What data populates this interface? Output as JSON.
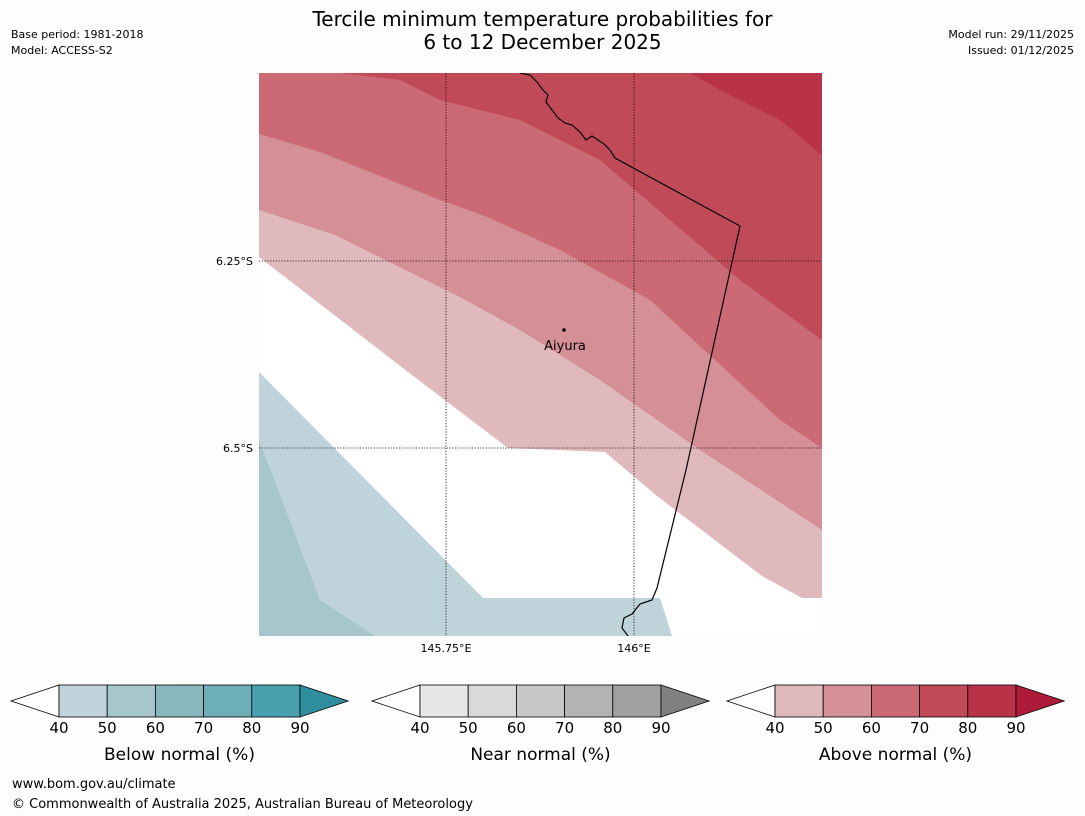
{
  "header": {
    "base_period": "Base period: 1981-2018",
    "model": "Model: ACCESS-S2",
    "title_line1": "Tercile minimum temperature probabilities for",
    "title_line2": "6 to 12 December 2025",
    "model_run": "Model run: 29/11/2025",
    "issued": "Issued: 01/12/2025"
  },
  "map": {
    "lat_labels": [
      "6.25°S",
      "6.5°S"
    ],
    "lon_labels": [
      "145.75°E",
      "146°E"
    ],
    "place": "Aiyura"
  },
  "legends": [
    {
      "title": "Below normal (%)",
      "ticks": [
        "40",
        "50",
        "60",
        "70",
        "80",
        "90"
      ],
      "colors": [
        "#bfd4da",
        "#a6c6cb",
        "#8ab7be",
        "#6daeb9",
        "#4aa0ad",
        "#2f8f9e"
      ],
      "under_color": "#ffffff"
    },
    {
      "title": "Near normal (%)",
      "ticks": [
        "40",
        "50",
        "60",
        "70",
        "80",
        "90"
      ],
      "colors": [
        "#e6e6e6",
        "#d9d9d9",
        "#c8c8c8",
        "#b3b3b3",
        "#a0a0a0",
        "#808080"
      ],
      "under_color": "#ffffff"
    },
    {
      "title": "Above normal (%)",
      "ticks": [
        "40",
        "50",
        "60",
        "70",
        "80",
        "90"
      ],
      "colors": [
        "#e0b9bd",
        "#d58f96",
        "#cb6a74",
        "#c04a58",
        "#b93348",
        "#ae1b3a"
      ],
      "under_color": "#ffffff"
    }
  ],
  "footer": {
    "url": "www.bom.gov.au/climate",
    "copyright": "© Commonwealth of Australia 2025, Australian Bureau of Meteorology"
  }
}
